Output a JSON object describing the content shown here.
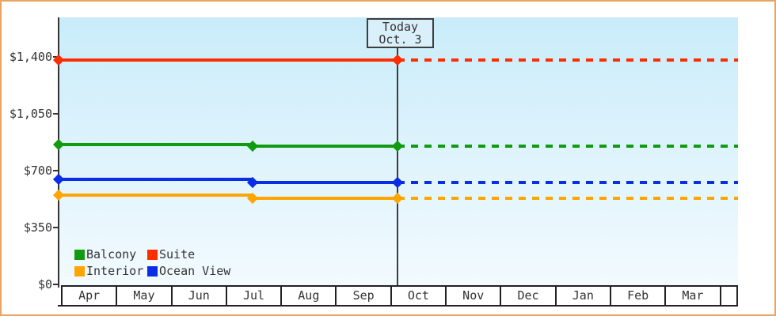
{
  "frame": {
    "border_color": "#e9a55f",
    "background": "#ffffff"
  },
  "today_box": {
    "line1": "Today",
    "line2": "Oct. 3"
  },
  "y_axis": {
    "tick_labels": [
      "$1,400",
      "$1,050",
      "$700",
      "$350",
      "$0"
    ]
  },
  "x_axis": {
    "months": [
      "Apr",
      "May",
      "Jun",
      "Jul",
      "Aug",
      "Sep",
      "Oct",
      "Nov",
      "Dec",
      "Jan",
      "Feb",
      "Mar"
    ]
  },
  "legend": {
    "rows": [
      [
        {
          "label": "Balcony",
          "color": "#119b11"
        },
        {
          "label": "Suite",
          "color": "#fb2e00"
        }
      ],
      [
        {
          "label": "Interior",
          "color": "#ffa502"
        },
        {
          "label": "Ocean View",
          "color": "#0a2de6"
        }
      ]
    ]
  },
  "chart_data": {
    "type": "line",
    "title": "",
    "categories": [
      "Apr",
      "May",
      "Jun",
      "Jul",
      "Aug",
      "Sep",
      "Oct",
      "Nov",
      "Dec",
      "Jan",
      "Feb",
      "Mar"
    ],
    "ylim": [
      0,
      1400
    ],
    "y_tick_values": [
      0,
      350,
      700,
      1050,
      1400
    ],
    "today": {
      "label": "Today",
      "date": "Oct. 3"
    },
    "solid_range": "Apr to Oct 3 (history)",
    "dashed_range": "Oct 3 to end of Mar (flat dotted projection)",
    "series": [
      {
        "name": "Suite",
        "color": "#fb2e00",
        "price_start_apr": 1380,
        "price_after_jul": 1380,
        "price_today": 1380,
        "markers": [
          "start",
          "today"
        ]
      },
      {
        "name": "Balcony",
        "color": "#119b11",
        "price_start_apr": 860,
        "price_after_jul": 850,
        "price_today": 850,
        "markers": [
          "start",
          "jul",
          "today"
        ]
      },
      {
        "name": "Ocean View",
        "color": "#0a2de6",
        "price_start_apr": 645,
        "price_after_jul": 625,
        "price_today": 625,
        "markers": [
          "start",
          "jul",
          "today"
        ]
      },
      {
        "name": "Interior",
        "color": "#ffa502",
        "price_start_apr": 550,
        "price_after_jul": 530,
        "price_today": 530,
        "markers": [
          "start",
          "jul",
          "today"
        ]
      }
    ]
  }
}
